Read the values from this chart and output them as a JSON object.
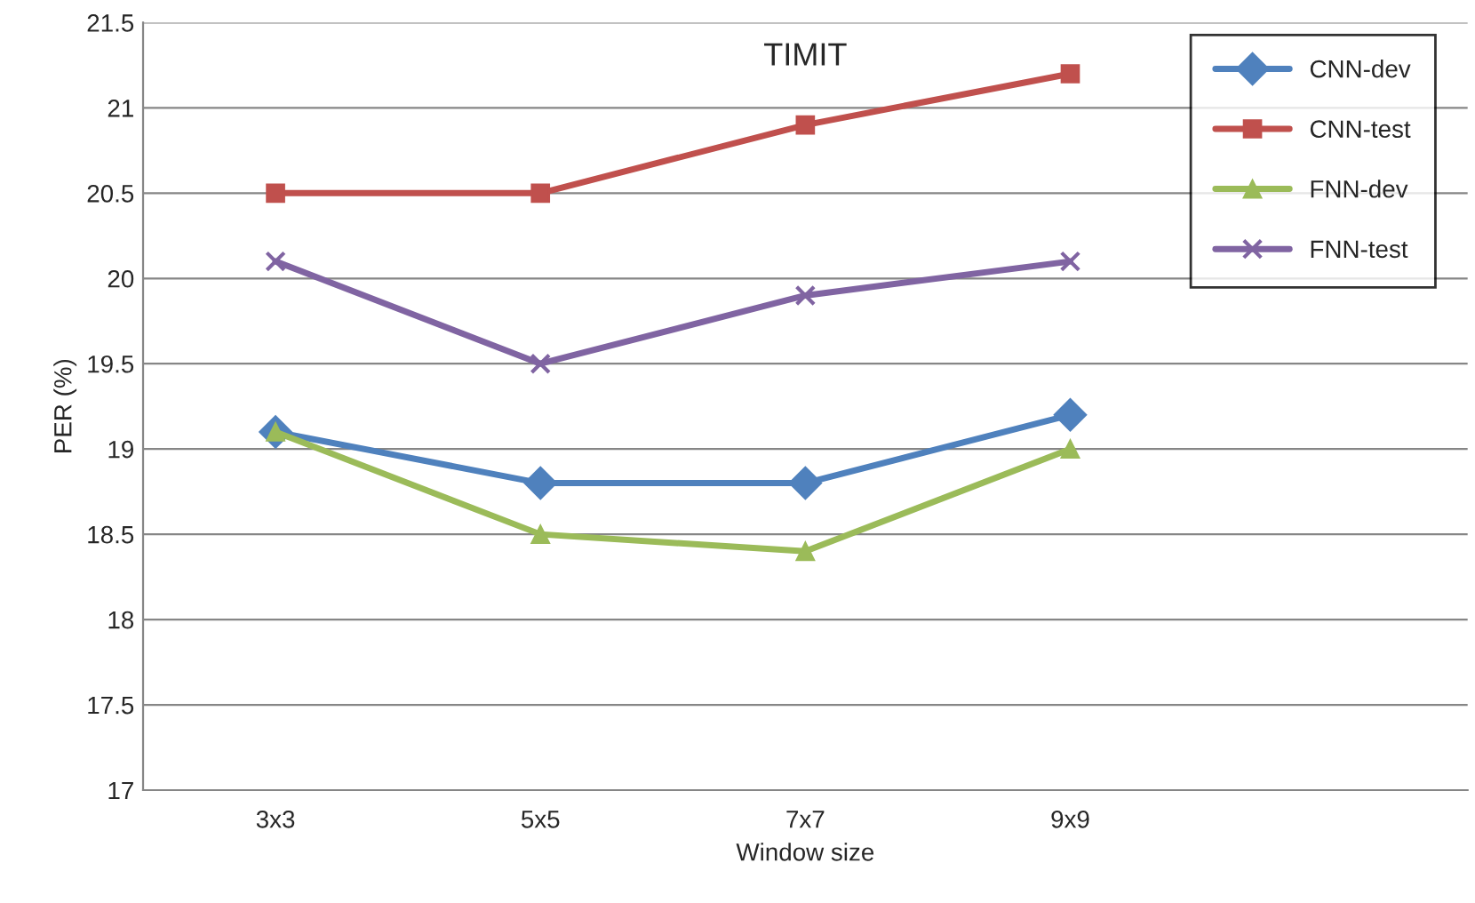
{
  "chart_data": {
    "type": "line",
    "title": "TIMIT",
    "xlabel": "Window size",
    "ylabel": "PER (%)",
    "categories": [
      "3x3",
      "5x5",
      "7x7",
      "9x9",
      null
    ],
    "series": [
      {
        "name": "CNN-dev",
        "color": "#4f81bd",
        "marker": "diamond",
        "values": [
          19.1,
          18.8,
          18.8,
          19.2,
          null
        ]
      },
      {
        "name": "CNN-test",
        "color": "#c0504d",
        "marker": "square",
        "values": [
          20.5,
          20.5,
          20.9,
          21.2,
          null
        ]
      },
      {
        "name": "FNN-dev",
        "color": "#9bbb59",
        "marker": "triangle",
        "values": [
          19.1,
          18.5,
          18.4,
          19.0,
          null
        ]
      },
      {
        "name": "FNN-test",
        "color": "#8064a2",
        "marker": "cross",
        "values": [
          20.1,
          19.5,
          19.9,
          20.1,
          null
        ]
      }
    ],
    "ylim": [
      17,
      21.5
    ],
    "yticks": [
      17,
      17.5,
      18,
      18.5,
      19,
      19.5,
      20,
      20.5,
      21,
      21.5
    ],
    "grid": "y",
    "legend": "top right",
    "line_style": "solid"
  }
}
